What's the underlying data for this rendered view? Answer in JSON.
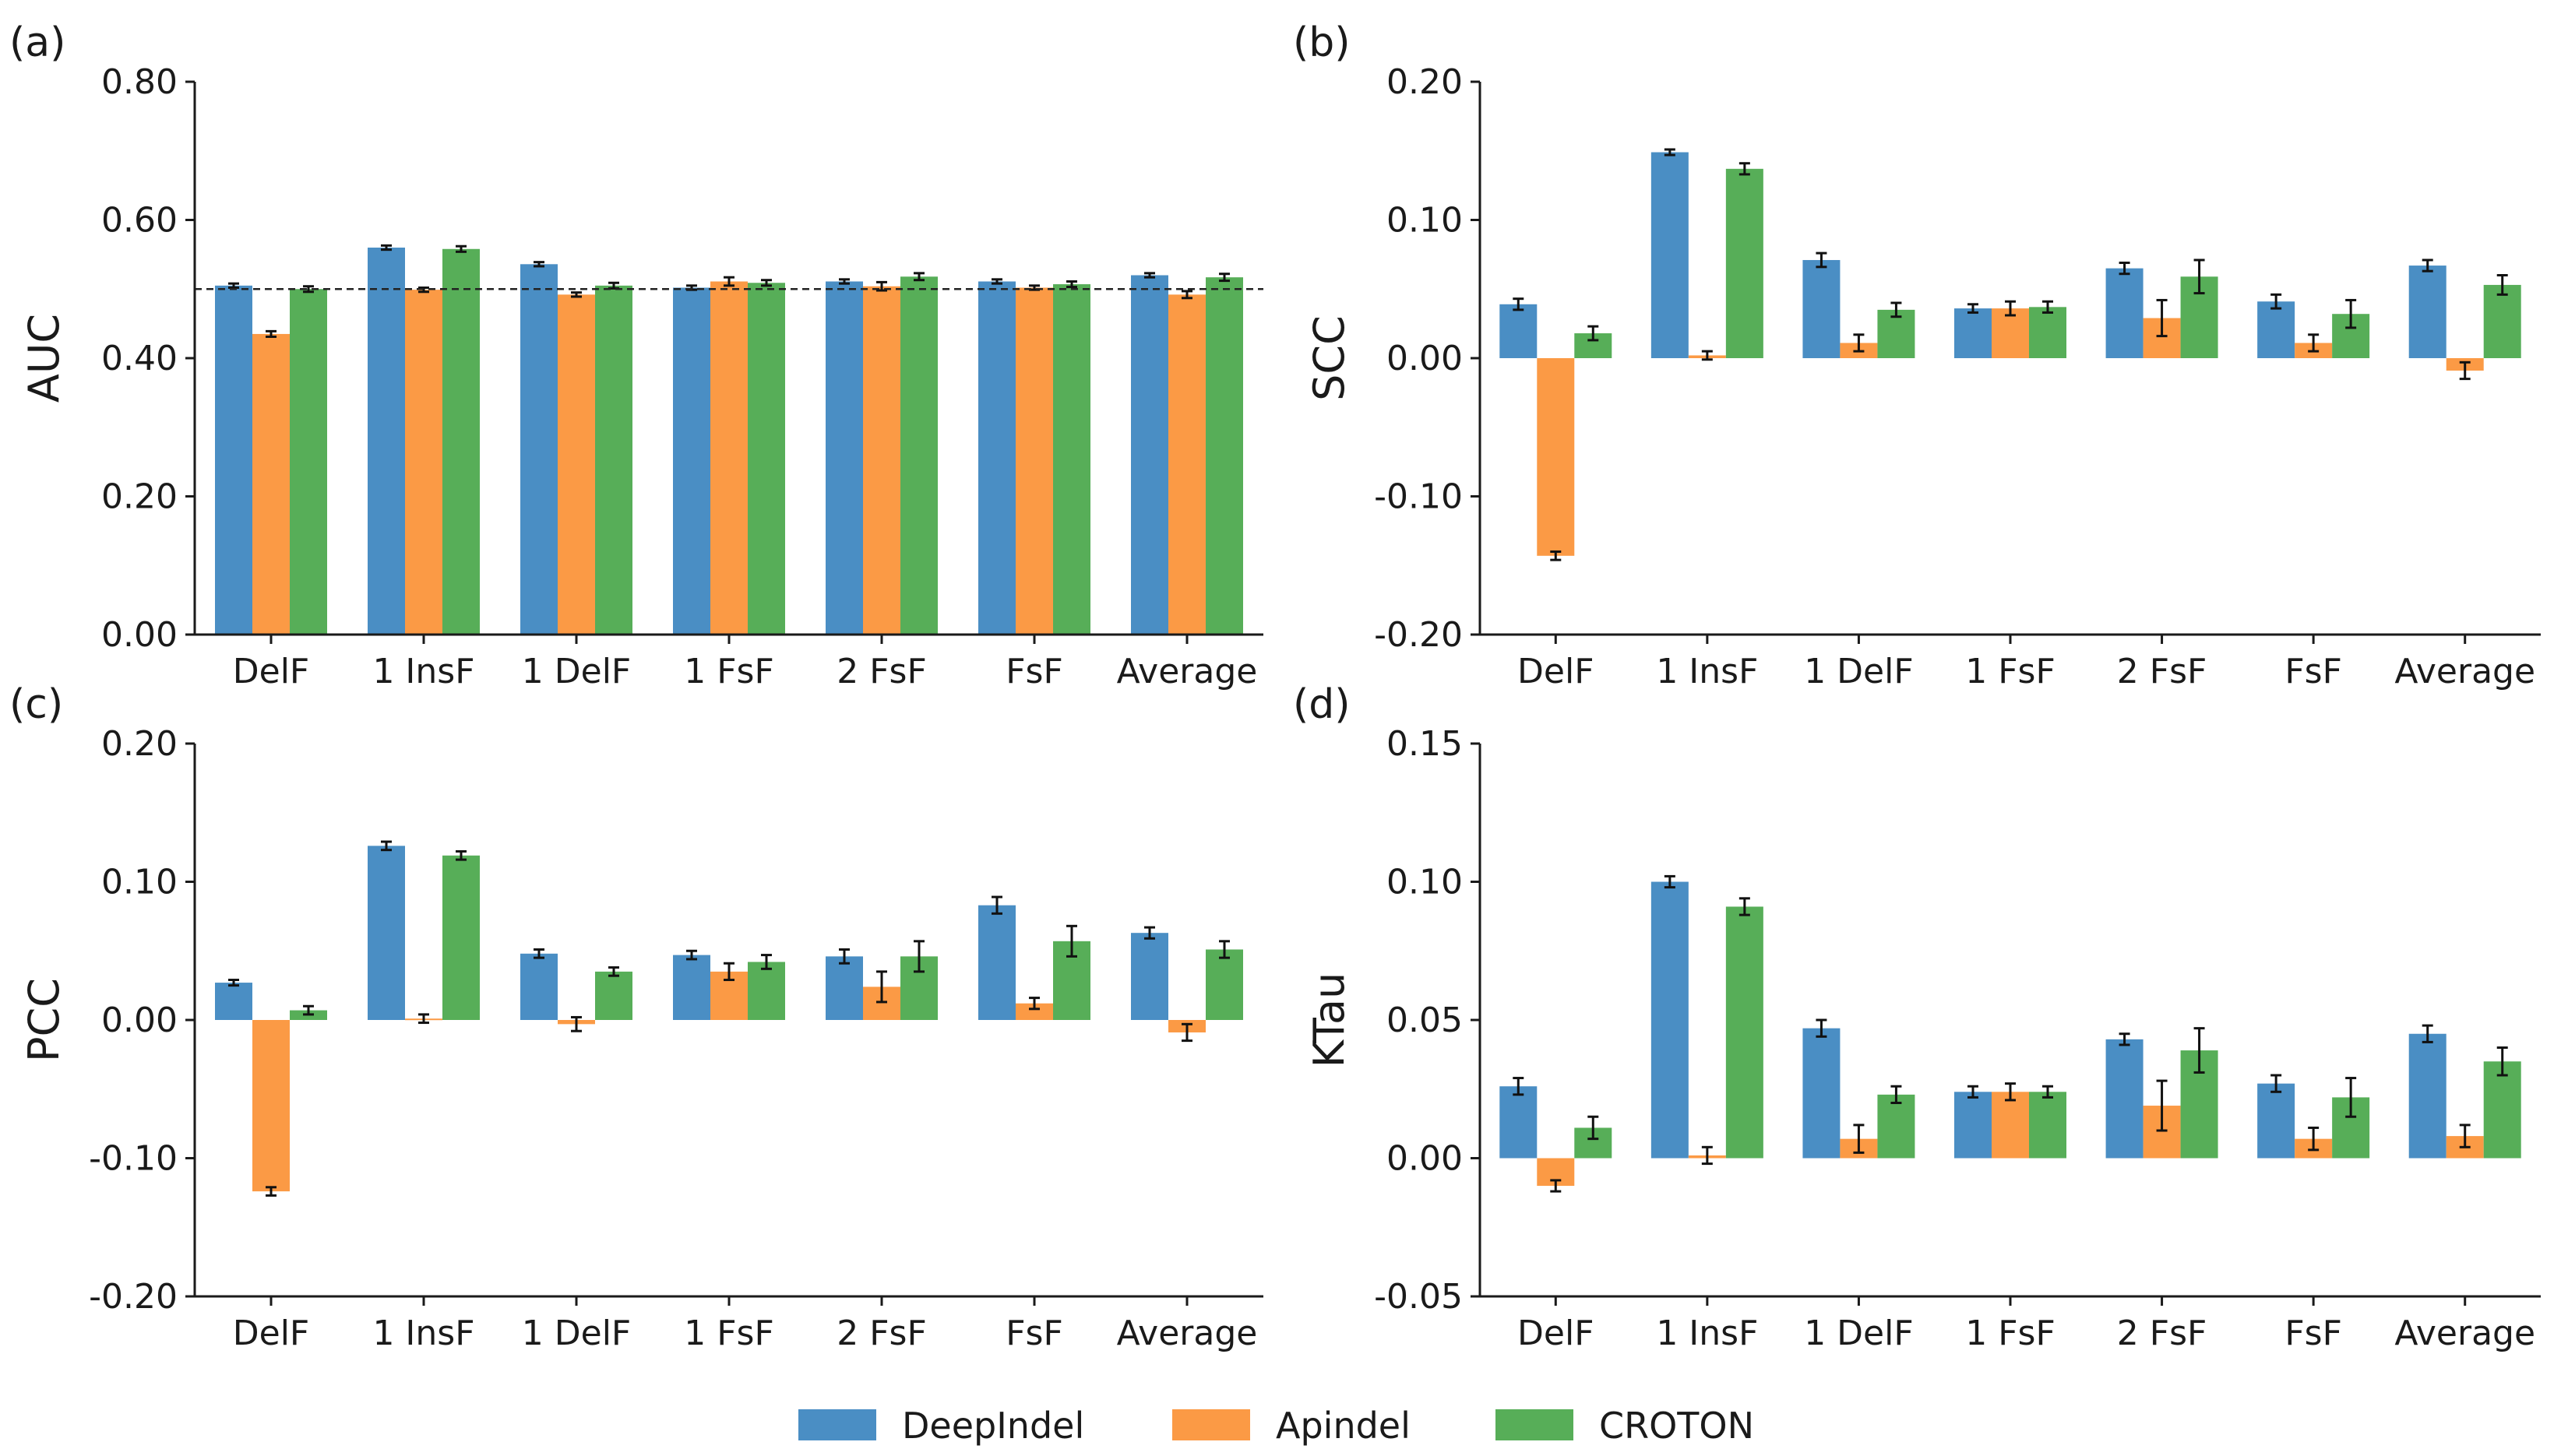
{
  "legend": [
    {
      "name": "DeepIndel",
      "color": "#4a8ec4"
    },
    {
      "name": "Apindel",
      "color": "#fb9a45"
    },
    {
      "name": "CROTON",
      "color": "#57ae58"
    }
  ],
  "chart_data": [
    {
      "type": "bar",
      "panel_label": "(a)",
      "ylabel": "AUC",
      "categories": [
        "DelF",
        "1 InsF",
        "1 DelF",
        "1 FsF",
        "2 FsF",
        "FsF",
        "Average"
      ],
      "ylim": [
        0.0,
        0.8
      ],
      "yticks": [
        0.0,
        0.2,
        0.4,
        0.6,
        0.8
      ],
      "ytick_labels": [
        "0.00",
        "0.20",
        "0.40",
        "0.60",
        "0.80"
      ],
      "reference_line": 0.5,
      "series": [
        {
          "name": "DeepIndel",
          "values": [
            0.505,
            0.56,
            0.536,
            0.502,
            0.511,
            0.511,
            0.52
          ],
          "errors": [
            0.003,
            0.003,
            0.003,
            0.003,
            0.003,
            0.003,
            0.003
          ]
        },
        {
          "name": "Apindel",
          "values": [
            0.435,
            0.499,
            0.492,
            0.511,
            0.504,
            0.502,
            0.492
          ],
          "errors": [
            0.004,
            0.003,
            0.003,
            0.006,
            0.006,
            0.003,
            0.005
          ]
        },
        {
          "name": "CROTON",
          "values": [
            0.5,
            0.558,
            0.505,
            0.509,
            0.518,
            0.507,
            0.517
          ],
          "errors": [
            0.004,
            0.004,
            0.004,
            0.004,
            0.005,
            0.004,
            0.005
          ]
        }
      ]
    },
    {
      "type": "bar",
      "panel_label": "(b)",
      "ylabel": "SCC",
      "categories": [
        "DelF",
        "1 InsF",
        "1 DelF",
        "1 FsF",
        "2 FsF",
        "FsF",
        "Average"
      ],
      "ylim": [
        -0.2,
        0.2
      ],
      "yticks": [
        -0.2,
        -0.1,
        0.0,
        0.1,
        0.2
      ],
      "ytick_labels": [
        "-0.20",
        "-0.10",
        "0.00",
        "0.10",
        "0.20"
      ],
      "series": [
        {
          "name": "DeepIndel",
          "values": [
            0.039,
            0.149,
            0.071,
            0.036,
            0.065,
            0.041,
            0.067
          ],
          "errors": [
            0.004,
            0.002,
            0.005,
            0.003,
            0.004,
            0.005,
            0.004
          ]
        },
        {
          "name": "Apindel",
          "values": [
            -0.143,
            0.002,
            0.011,
            0.036,
            0.029,
            0.011,
            -0.009
          ],
          "errors": [
            0.003,
            0.003,
            0.006,
            0.005,
            0.013,
            0.006,
            0.006
          ]
        },
        {
          "name": "CROTON",
          "values": [
            0.018,
            0.137,
            0.035,
            0.037,
            0.059,
            0.032,
            0.053
          ],
          "errors": [
            0.005,
            0.004,
            0.005,
            0.004,
            0.012,
            0.01,
            0.007
          ]
        }
      ]
    },
    {
      "type": "bar",
      "panel_label": "(c)",
      "ylabel": "PCC",
      "categories": [
        "DelF",
        "1 InsF",
        "1 DelF",
        "1 FsF",
        "2 FsF",
        "FsF",
        "Average"
      ],
      "ylim": [
        -0.2,
        0.2
      ],
      "yticks": [
        -0.2,
        -0.1,
        0.0,
        0.1,
        0.2
      ],
      "ytick_labels": [
        "-0.20",
        "-0.10",
        "0.00",
        "0.10",
        "0.20"
      ],
      "series": [
        {
          "name": "DeepIndel",
          "values": [
            0.027,
            0.126,
            0.048,
            0.047,
            0.046,
            0.083,
            0.063
          ],
          "errors": [
            0.002,
            0.003,
            0.003,
            0.003,
            0.005,
            0.006,
            0.004
          ]
        },
        {
          "name": "Apindel",
          "values": [
            -0.124,
            0.001,
            -0.003,
            0.035,
            0.024,
            0.012,
            -0.009
          ],
          "errors": [
            0.003,
            0.003,
            0.005,
            0.006,
            0.011,
            0.004,
            0.006
          ]
        },
        {
          "name": "CROTON",
          "values": [
            0.007,
            0.119,
            0.035,
            0.042,
            0.046,
            0.057,
            0.051
          ],
          "errors": [
            0.003,
            0.003,
            0.003,
            0.005,
            0.011,
            0.011,
            0.006
          ]
        }
      ]
    },
    {
      "type": "bar",
      "panel_label": "(d)",
      "ylabel": "KTau",
      "categories": [
        "DelF",
        "1 InsF",
        "1 DelF",
        "1 FsF",
        "2 FsF",
        "FsF",
        "Average"
      ],
      "ylim": [
        -0.05,
        0.15
      ],
      "yticks": [
        -0.05,
        0.0,
        0.05,
        0.1,
        0.15
      ],
      "ytick_labels": [
        "-0.05",
        "0.00",
        "0.05",
        "0.10",
        "0.15"
      ],
      "series": [
        {
          "name": "DeepIndel",
          "values": [
            0.026,
            0.1,
            0.047,
            0.024,
            0.043,
            0.027,
            0.045
          ],
          "errors": [
            0.003,
            0.002,
            0.003,
            0.002,
            0.002,
            0.003,
            0.003
          ]
        },
        {
          "name": "Apindel",
          "values": [
            -0.01,
            0.001,
            0.007,
            0.024,
            0.019,
            0.007,
            0.008
          ],
          "errors": [
            0.002,
            0.003,
            0.005,
            0.003,
            0.009,
            0.004,
            0.004
          ]
        },
        {
          "name": "CROTON",
          "values": [
            0.011,
            0.091,
            0.023,
            0.024,
            0.039,
            0.022,
            0.035
          ],
          "errors": [
            0.004,
            0.003,
            0.003,
            0.002,
            0.008,
            0.007,
            0.005
          ]
        }
      ]
    }
  ]
}
